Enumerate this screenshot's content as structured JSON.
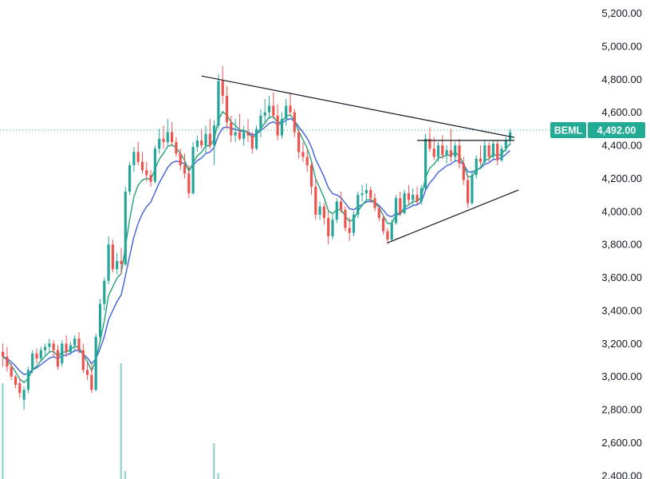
{
  "chart_data": {
    "type": "candlestick",
    "symbol": "BEML",
    "last_price": 4492.0,
    "last_price_label": "4,492.00",
    "y_axis": {
      "position": "right",
      "ylim": [
        2380,
        5280
      ],
      "ticks": [
        2400,
        2600,
        2800,
        3000,
        3200,
        3400,
        3600,
        3800,
        4000,
        4200,
        4400,
        4600,
        4800,
        5000,
        5200
      ],
      "tick_labels": [
        "2,400.00",
        "2,600.00",
        "2,800.00",
        "3,000.00",
        "3,200.00",
        "3,400.00",
        "3,600.00",
        "3,800.00",
        "4,000.00",
        "4,200.00",
        "4,400.00",
        "4,600.00",
        "4,800.00",
        "5,000.00",
        "5,200.00"
      ]
    },
    "grid": false,
    "colors": {
      "up": "#26a69a",
      "down": "#ef5350",
      "ema_fast": "#22a079",
      "ema_slow": "#3d5fdc",
      "trendline": "#131722",
      "price_line": "#22ab94",
      "volume": "#9ed8d1"
    },
    "trendlines": [
      {
        "from": [
          0,
          4820
        ],
        "to": [
          58,
          4448
        ]
      },
      {
        "from": [
          39,
          3810
        ],
        "to": [
          53,
          4130
        ]
      },
      {
        "from": [
          44,
          4430
        ],
        "to": [
          54,
          4430
        ]
      }
    ],
    "ohlc": [
      [
        3150,
        3200,
        3060,
        3120
      ],
      [
        3120,
        3180,
        3030,
        3060
      ],
      [
        3060,
        3080,
        2980,
        3000
      ],
      [
        3000,
        3010,
        2930,
        2950
      ],
      [
        2960,
        2990,
        2870,
        2900
      ],
      [
        2860,
        2940,
        2800,
        2920
      ],
      [
        2920,
        3060,
        2900,
        3040
      ],
      [
        3040,
        3160,
        3020,
        3140
      ],
      [
        3140,
        3170,
        3080,
        3110
      ],
      [
        3110,
        3180,
        3090,
        3160
      ],
      [
        3160,
        3200,
        3130,
        3180
      ],
      [
        3180,
        3230,
        3150,
        3200
      ],
      [
        3200,
        3220,
        3120,
        3160
      ],
      [
        3160,
        3190,
        3040,
        3060
      ],
      [
        3080,
        3220,
        3060,
        3200
      ],
      [
        3200,
        3250,
        3120,
        3150
      ],
      [
        3150,
        3210,
        3130,
        3190
      ],
      [
        3190,
        3250,
        3150,
        3230
      ],
      [
        3230,
        3270,
        3140,
        3160
      ],
      [
        3160,
        3200,
        3020,
        3040
      ],
      [
        3040,
        3090,
        2980,
        3010
      ],
      [
        3010,
        3080,
        2900,
        2920
      ],
      [
        2920,
        3260,
        2910,
        3240
      ],
      [
        3240,
        3470,
        3220,
        3440
      ],
      [
        3440,
        3600,
        3400,
        3580
      ],
      [
        3580,
        3850,
        3560,
        3800
      ],
      [
        3800,
        3830,
        3630,
        3650
      ],
      [
        3650,
        3750,
        3620,
        3700
      ],
      [
        3700,
        3780,
        3620,
        3680
      ],
      [
        3680,
        4150,
        3670,
        4120
      ],
      [
        4120,
        4300,
        4100,
        4280
      ],
      [
        4280,
        4390,
        4240,
        4360
      ],
      [
        4360,
        4420,
        4280,
        4300
      ],
      [
        4300,
        4360,
        4230,
        4250
      ],
      [
        4250,
        4300,
        4180,
        4220
      ],
      [
        4220,
        4250,
        4150,
        4180
      ],
      [
        4180,
        4400,
        4170,
        4380
      ],
      [
        4380,
        4500,
        4350,
        4440
      ],
      [
        4440,
        4520,
        4380,
        4420
      ],
      [
        4420,
        4560,
        4390,
        4480
      ],
      [
        4480,
        4540,
        4400,
        4420
      ],
      [
        4420,
        4450,
        4330,
        4350
      ],
      [
        4350,
        4380,
        4250,
        4280
      ],
      [
        4280,
        4350,
        4200,
        4230
      ],
      [
        4230,
        4280,
        4080,
        4110
      ],
      [
        4110,
        4420,
        4100,
        4390
      ],
      [
        4390,
        4460,
        4360,
        4430
      ],
      [
        4430,
        4500,
        4380,
        4400
      ],
      [
        4400,
        4520,
        4350,
        4470
      ],
      [
        4470,
        4560,
        4380,
        4400
      ],
      [
        4400,
        4550,
        4280,
        4520
      ],
      [
        4520,
        4830,
        4500,
        4790
      ],
      [
        4790,
        4880,
        4650,
        4700
      ],
      [
        4700,
        4760,
        4500,
        4540
      ],
      [
        4540,
        4580,
        4420,
        4460
      ],
      [
        4460,
        4560,
        4420,
        4480
      ],
      [
        4480,
        4590,
        4430,
        4440
      ],
      [
        4440,
        4520,
        4400,
        4480
      ],
      [
        4480,
        4560,
        4420,
        4460
      ],
      [
        4460,
        4480,
        4350,
        4380
      ],
      [
        4380,
        4520,
        4370,
        4500
      ],
      [
        4500,
        4620,
        4450,
        4580
      ],
      [
        4580,
        4680,
        4530,
        4600
      ],
      [
        4600,
        4700,
        4560,
        4640
      ],
      [
        4640,
        4720,
        4560,
        4580
      ],
      [
        4580,
        4650,
        4430,
        4460
      ],
      [
        4460,
        4600,
        4440,
        4560
      ],
      [
        4560,
        4680,
        4520,
        4640
      ],
      [
        4640,
        4720,
        4580,
        4600
      ],
      [
        4600,
        4620,
        4450,
        4480
      ],
      [
        4480,
        4500,
        4320,
        4360
      ],
      [
        4360,
        4420,
        4300,
        4330
      ],
      [
        4330,
        4380,
        4240,
        4280
      ],
      [
        4280,
        4300,
        4100,
        4150
      ],
      [
        4150,
        4200,
        3950,
        3980
      ],
      [
        3980,
        4060,
        3950,
        4030
      ],
      [
        4030,
        4050,
        3920,
        3960
      ],
      [
        3960,
        4000,
        3800,
        3850
      ],
      [
        3850,
        3980,
        3830,
        3950
      ],
      [
        3950,
        4080,
        3930,
        4060
      ],
      [
        4060,
        4120,
        3990,
        4010
      ],
      [
        4010,
        4030,
        3880,
        3900
      ],
      [
        3900,
        3960,
        3820,
        3870
      ],
      [
        3870,
        4000,
        3850,
        3980
      ],
      [
        3980,
        4120,
        3960,
        4100
      ],
      [
        4100,
        4160,
        4060,
        4110
      ],
      [
        4110,
        4170,
        4070,
        4130
      ],
      [
        4130,
        4150,
        4050,
        4080
      ],
      [
        4080,
        4110,
        4000,
        4020
      ],
      [
        4020,
        4040,
        3940,
        3960
      ],
      [
        3960,
        3980,
        3860,
        3880
      ],
      [
        3880,
        3900,
        3800,
        3830
      ],
      [
        3830,
        3950,
        3820,
        3930
      ],
      [
        3930,
        4100,
        3920,
        4080
      ],
      [
        4080,
        4120,
        3970,
        3990
      ],
      [
        3990,
        4130,
        3980,
        4110
      ],
      [
        4110,
        4160,
        4040,
        4070
      ],
      [
        4070,
        4140,
        4030,
        4100
      ],
      [
        4100,
        4150,
        4040,
        4060
      ],
      [
        4060,
        4160,
        4040,
        4140
      ],
      [
        4140,
        4470,
        4130,
        4440
      ],
      [
        4440,
        4510,
        4360,
        4380
      ],
      [
        4380,
        4450,
        4310,
        4330
      ],
      [
        4330,
        4420,
        4300,
        4400
      ],
      [
        4400,
        4460,
        4320,
        4340
      ],
      [
        4340,
        4400,
        4290,
        4370
      ],
      [
        4370,
        4500,
        4300,
        4330
      ],
      [
        4330,
        4420,
        4300,
        4400
      ],
      [
        4400,
        4440,
        4260,
        4290
      ],
      [
        4290,
        4330,
        4160,
        4190
      ],
      [
        4190,
        4220,
        4020,
        4050
      ],
      [
        4050,
        4250,
        4040,
        4220
      ],
      [
        4220,
        4340,
        4200,
        4320
      ],
      [
        4320,
        4400,
        4280,
        4300
      ],
      [
        4300,
        4430,
        4280,
        4400
      ],
      [
        4400,
        4420,
        4300,
        4330
      ],
      [
        4330,
        4430,
        4320,
        4410
      ],
      [
        4410,
        4430,
        4280,
        4310
      ],
      [
        4310,
        4400,
        4300,
        4380
      ],
      [
        4380,
        4450,
        4360,
        4430
      ],
      [
        4430,
        4500,
        4400,
        4480
      ]
    ],
    "volume_visible_fraction": [
      0.48,
      0,
      0,
      0,
      0,
      0,
      0,
      0,
      0,
      0,
      0,
      0,
      0,
      0,
      0,
      0,
      0,
      0,
      0,
      0,
      0,
      0,
      0,
      0,
      0,
      0,
      0,
      0,
      0.58,
      0.04,
      0,
      0,
      0,
      0,
      0,
      0,
      0,
      0,
      0,
      0,
      0,
      0,
      0,
      0,
      0,
      0,
      0,
      0,
      0,
      0,
      0.18,
      0.03,
      0,
      0,
      0,
      0,
      0,
      0,
      0,
      0,
      0,
      0,
      0,
      0,
      0,
      0,
      0,
      0,
      0,
      0,
      0,
      0,
      0,
      0,
      0,
      0,
      0,
      0,
      0,
      0,
      0,
      0,
      0,
      0,
      0,
      0,
      0,
      0,
      0,
      0,
      0,
      0,
      0,
      0,
      0,
      0,
      0,
      0,
      0,
      0,
      0,
      0,
      0,
      0,
      0,
      0,
      0,
      0,
      0,
      0,
      0,
      0,
      0,
      0,
      0,
      0,
      0,
      0
    ]
  }
}
